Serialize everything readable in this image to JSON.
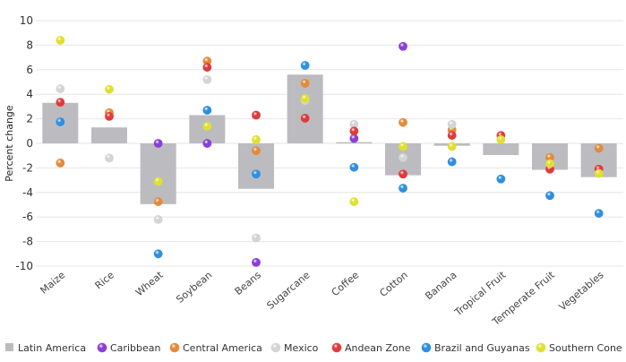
{
  "chart_data": {
    "type": "bar",
    "title": "",
    "xlabel": "",
    "ylabel": "Percent change",
    "ylim": [
      -10,
      10
    ],
    "yticks": [
      -10,
      -8,
      -6,
      -4,
      -2,
      0,
      2,
      4,
      6,
      8,
      10
    ],
    "grid": true,
    "legend_position": "bottom",
    "categories": [
      "Maize",
      "Rice",
      "Wheat",
      "Soybean",
      "Beans",
      "Sugarcane",
      "Coffee",
      "Cotton",
      "Banana",
      "Tropical Fruit",
      "Temperate Fruit",
      "Vegetables"
    ],
    "bar_series": {
      "name": "Latin America",
      "color": "#bcbcc0",
      "values": [
        3.3,
        1.3,
        -4.95,
        2.3,
        -3.7,
        5.6,
        0.1,
        -2.6,
        -0.2,
        -0.95,
        -2.15,
        -2.75
      ]
    },
    "point_series": [
      {
        "name": "Caribbean",
        "color": "#8a3fd6",
        "values": [
          null,
          null,
          0.0,
          0.0,
          -9.7,
          null,
          0.4,
          7.9,
          null,
          null,
          null,
          null
        ]
      },
      {
        "name": "Central America",
        "color": "#e38a3c",
        "values": [
          -1.6,
          2.5,
          -4.75,
          6.7,
          -0.6,
          4.9,
          null,
          1.7,
          1.1,
          null,
          -1.15,
          -0.4
        ]
      },
      {
        "name": "Mexico",
        "color": "#d4d4d6",
        "values": [
          4.45,
          -1.2,
          -6.2,
          5.2,
          -7.7,
          3.5,
          1.55,
          -1.15,
          1.55,
          null,
          null,
          null
        ]
      },
      {
        "name": "Andean Zone",
        "color": "#e03a3a",
        "values": [
          3.35,
          2.2,
          null,
          6.2,
          2.3,
          2.05,
          1.0,
          -2.5,
          0.65,
          0.65,
          -2.1,
          -2.1
        ]
      },
      {
        "name": "Brazil and Guyanas",
        "color": "#2f8fe0",
        "values": [
          1.75,
          null,
          -9.0,
          2.7,
          -2.5,
          6.35,
          -1.95,
          -3.65,
          -1.5,
          -2.9,
          -4.25,
          -5.7
        ]
      },
      {
        "name": "Southern Cone",
        "color": "#e0e030",
        "values": [
          8.4,
          4.4,
          -3.1,
          1.4,
          0.3,
          3.65,
          -4.75,
          -0.25,
          -0.25,
          0.3,
          -1.65,
          -2.45
        ]
      }
    ]
  }
}
